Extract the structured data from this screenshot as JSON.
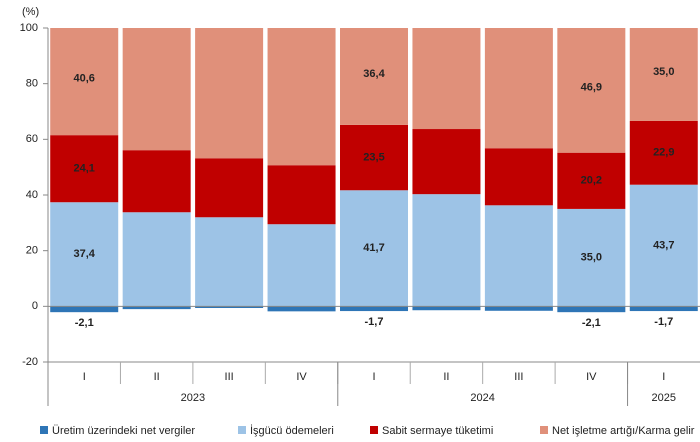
{
  "chart_data": {
    "type": "stacked-bar",
    "y_label": "(%)",
    "categories": [
      "I",
      "II",
      "III",
      "IV",
      "I",
      "II",
      "III",
      "IV",
      "I"
    ],
    "groups": [
      {
        "name": "2023",
        "count": 4
      },
      {
        "name": "2024",
        "count": 4
      },
      {
        "name": "2025",
        "count": 1
      }
    ],
    "series": [
      {
        "name": "Üretim üzerindeki net vergiler",
        "color": "#2e75b6",
        "values": [
          -2.1,
          -1.0,
          -0.6,
          -1.8,
          -1.7,
          -1.4,
          -1.6,
          -2.1,
          -1.7
        ],
        "value_labels": [
          "-2,1",
          null,
          null,
          null,
          "-1,7",
          null,
          null,
          "-2,1",
          "-1,7"
        ]
      },
      {
        "name": "İşgücü ödemeleri",
        "color": "#9dc3e6",
        "values": [
          37.4,
          33.8,
          32.0,
          29.5,
          41.7,
          40.3,
          36.3,
          35.0,
          43.7
        ],
        "value_labels": [
          "37,4",
          null,
          null,
          null,
          "41,7",
          null,
          null,
          "35,0",
          "43,7"
        ]
      },
      {
        "name": "Sabit sermaye tüketimi",
        "color": "#c00000",
        "values": [
          24.1,
          22.3,
          21.2,
          21.2,
          23.5,
          23.4,
          20.5,
          20.2,
          22.9
        ],
        "value_labels": [
          "24,1",
          null,
          null,
          null,
          "23,5",
          null,
          null,
          "20,2",
          "22,9"
        ]
      },
      {
        "name": "Net işletme artığı/Karma gelir",
        "color": "#e0907a",
        "values": [
          40.6,
          44.9,
          47.4,
          51.1,
          36.4,
          37.7,
          44.8,
          46.9,
          35.0
        ],
        "value_labels": [
          "40,6",
          null,
          null,
          null,
          "36,4",
          null,
          null,
          "46,9",
          "35,0"
        ]
      }
    ],
    "ylim": [
      -20,
      100
    ],
    "yticks": [
      -20,
      0,
      20,
      40,
      60,
      80,
      100
    ],
    "grid": false,
    "legend": "bottom"
  }
}
